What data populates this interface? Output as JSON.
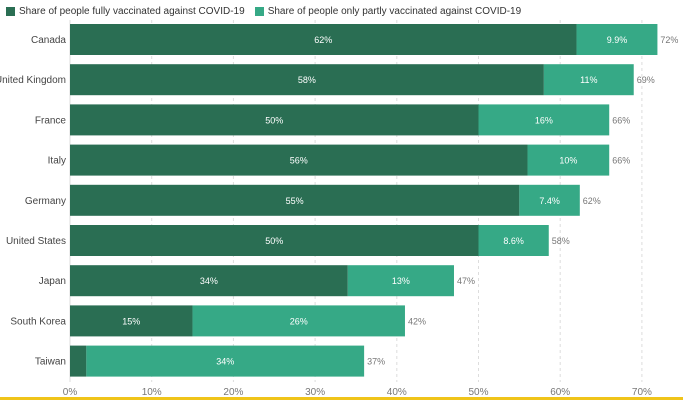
{
  "legend": {
    "fully_label": "Share of people fully vaccinated against COVID-19",
    "partly_label": "Share of people only partly vaccinated against COVID-19"
  },
  "colors": {
    "fully": "#2a6e53",
    "partly": "#36a986",
    "grid": "#dddddd",
    "text": "#444444",
    "axis_text": "#777777",
    "bottom_accent": "#f0c419"
  },
  "chart_data": {
    "type": "bar",
    "orientation": "horizontal",
    "stacked": true,
    "categories": [
      "Canada",
      "United Kingdom",
      "France",
      "Italy",
      "Germany",
      "United States",
      "Japan",
      "South Korea",
      "Taiwan"
    ],
    "series": [
      {
        "name": "Share of people fully vaccinated against COVID-19",
        "values": [
          62,
          58,
          50,
          56,
          55,
          50,
          34,
          15,
          2
        ],
        "labels": [
          "62%",
          "58%",
          "50%",
          "56%",
          "55%",
          "50%",
          "34%",
          "15%",
          ""
        ]
      },
      {
        "name": "Share of people only partly vaccinated against COVID-19",
        "values": [
          9.9,
          11,
          16,
          10,
          7.4,
          8.6,
          13,
          26,
          34
        ],
        "labels": [
          "9.9%",
          "11%",
          "16%",
          "10%",
          "7.4%",
          "8.6%",
          "13%",
          "26%",
          "34%"
        ]
      }
    ],
    "totals": [
      "72%",
      "69%",
      "66%",
      "66%",
      "62%",
      "58%",
      "47%",
      "42%",
      "37%"
    ],
    "xlim": [
      0,
      72
    ],
    "xticks": [
      0,
      10,
      20,
      30,
      40,
      50,
      60,
      70
    ],
    "xtick_labels": [
      "0%",
      "10%",
      "20%",
      "30%",
      "40%",
      "50%",
      "60%",
      "70%"
    ],
    "grid": true,
    "legend_position": "top-left"
  }
}
